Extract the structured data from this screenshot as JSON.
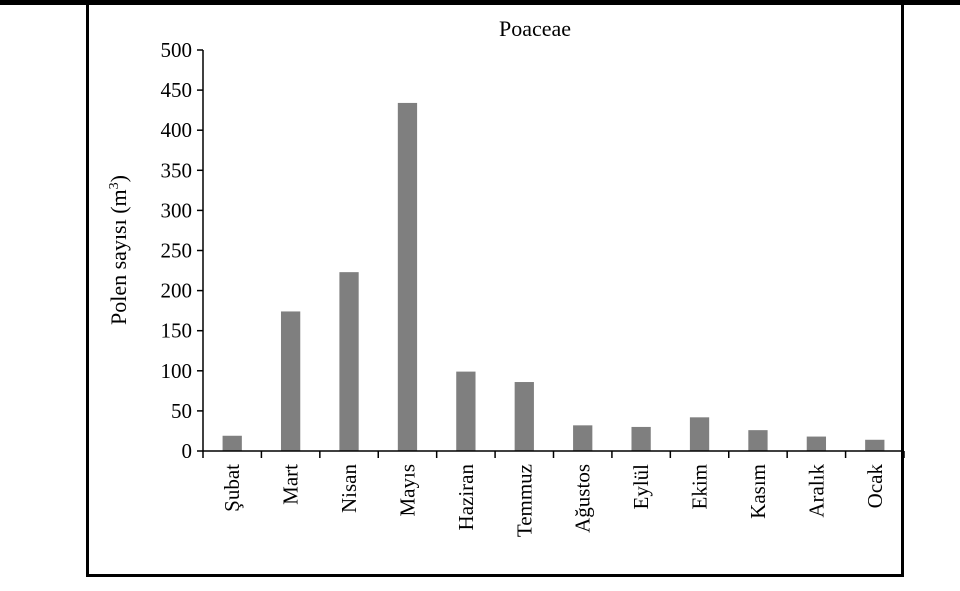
{
  "chart_data": {
    "type": "bar",
    "title": "Poaceae",
    "xlabel": "",
    "ylabel": "Polen sayısı (m",
    "ylabel_superscript": "3",
    "ylabel_suffix": ")",
    "ylim": [
      0,
      500
    ],
    "yticks": [
      0,
      50,
      100,
      150,
      200,
      250,
      300,
      350,
      400,
      450,
      500
    ],
    "categories": [
      "Şubat",
      "Mart",
      "Nisan",
      "Mayıs",
      "Haziran",
      "Temmuz",
      "Ağustos",
      "Eylül",
      "Ekim",
      "Kasım",
      "Aralık",
      "Ocak"
    ],
    "values": [
      19,
      174,
      223,
      434,
      99,
      86,
      32,
      30,
      42,
      26,
      18,
      14
    ],
    "bar_color": "#7f7f7f",
    "grid": false,
    "legend": "none"
  }
}
